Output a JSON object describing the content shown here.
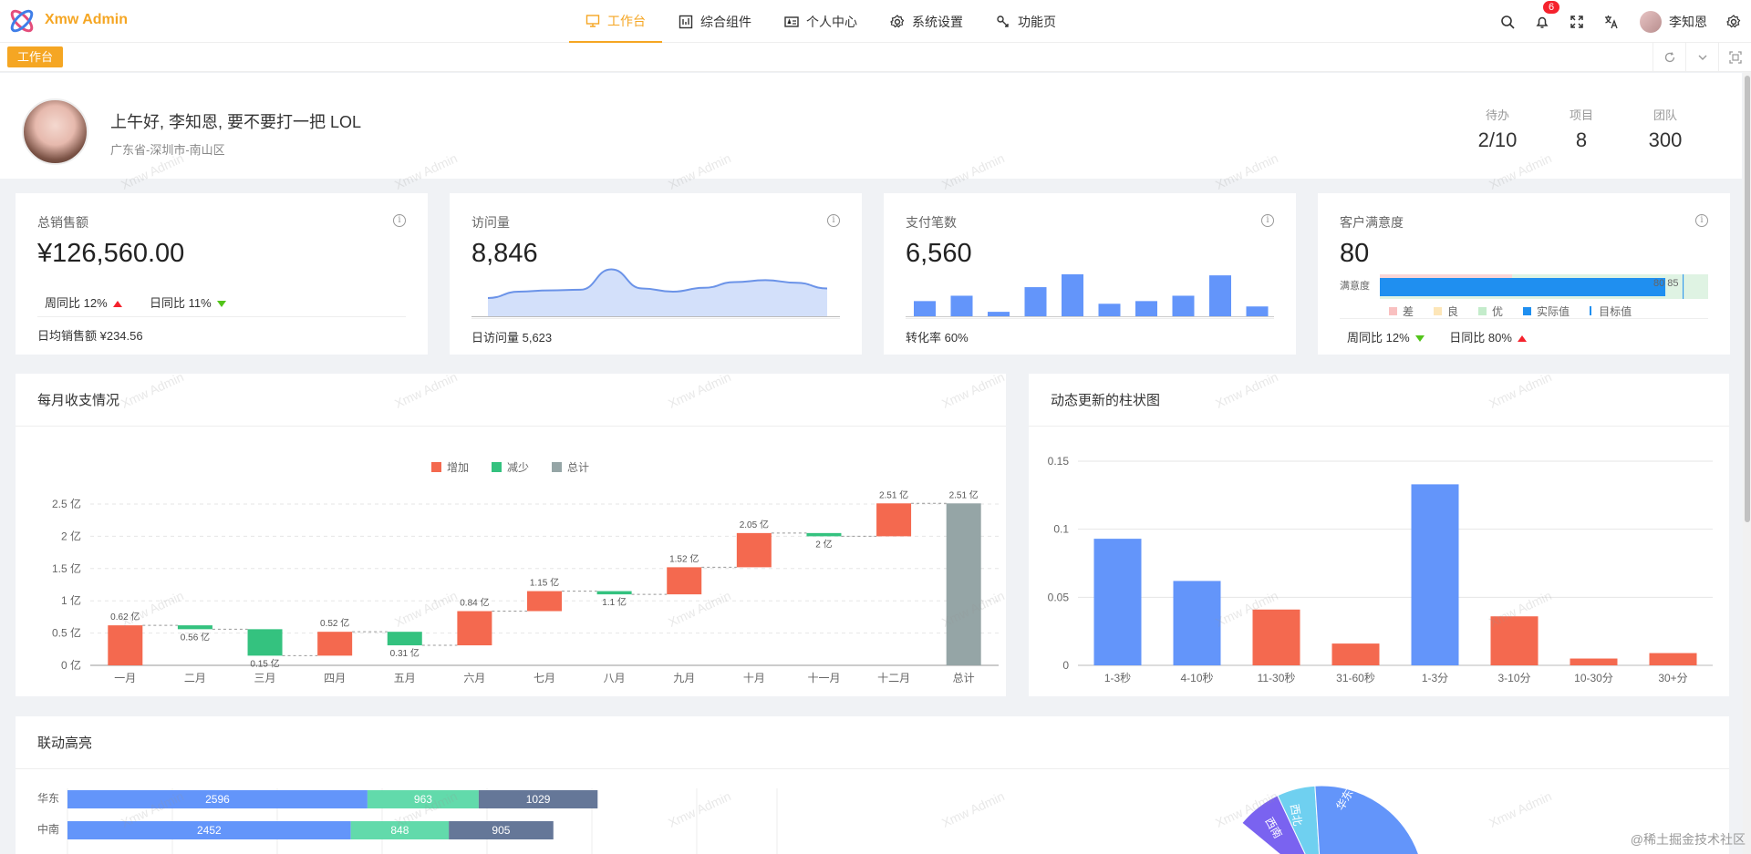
{
  "app": {
    "name": "Xmw Admin",
    "brand_color": "#f5a623"
  },
  "nav": [
    {
      "label": "工作台",
      "icon": "monitor-icon",
      "active": true
    },
    {
      "label": "综合组件",
      "icon": "component-icon",
      "active": false
    },
    {
      "label": "个人中心",
      "icon": "id-card-icon",
      "active": false
    },
    {
      "label": "系统设置",
      "icon": "gear-icon",
      "active": false
    },
    {
      "label": "功能页",
      "icon": "function-icon",
      "active": false
    }
  ],
  "header": {
    "notification_count": "6",
    "username": "李知恩"
  },
  "tabs": [
    {
      "label": "工作台"
    }
  ],
  "welcome": {
    "greeting": "上午好, 李知恩, 要不要打一把 LOL",
    "location": "广东省-深圳市-南山区",
    "stats": [
      {
        "label": "待办",
        "value": "2/10"
      },
      {
        "label": "项目",
        "value": "8"
      },
      {
        "label": "团队",
        "value": "300"
      }
    ]
  },
  "cards": {
    "sales": {
      "title": "总销售额",
      "value": "¥126,560.00",
      "week": "周同比 12%",
      "day": "日同比 11%",
      "footer": "日均销售额 ¥234.56"
    },
    "visits": {
      "title": "访问量",
      "value": "8,846",
      "footer": "日访问量 5,623",
      "trend": [
        3,
        4,
        4.2,
        4.3,
        7.5,
        4.5,
        4,
        4.6,
        5.5,
        5.8,
        5.4,
        4.5
      ]
    },
    "payments": {
      "title": "支付笔数",
      "value": "6,560",
      "footer": "转化率 60%",
      "bars": [
        3,
        4,
        1,
        5.6,
        8,
        2.5,
        3,
        4,
        7.8,
        2
      ]
    },
    "satisfaction": {
      "title": "客户满意度",
      "value": "80",
      "bar_label": "满意度",
      "actual": 80,
      "target": 85,
      "bar_value_text": "80 85",
      "legend": [
        "差",
        "良",
        "优",
        "实际值",
        "目标值"
      ],
      "week": "周同比 12%",
      "day": "日同比 80%"
    }
  },
  "waterfall": {
    "title": "每月收支情况",
    "legend": [
      "增加",
      "减少",
      "总计"
    ],
    "colors": {
      "up": "#f4694f",
      "down": "#34c27f",
      "total": "#95a5a6"
    },
    "chart_data": {
      "type": "bar",
      "categories": [
        "一月",
        "二月",
        "三月",
        "四月",
        "五月",
        "六月",
        "七月",
        "八月",
        "九月",
        "十月",
        "十一月",
        "十二月",
        "总计"
      ],
      "series": [
        {
          "name": "增加",
          "values": [
            0.62,
            0,
            0,
            0.52,
            0,
            0.84,
            1.15,
            0,
            1.52,
            2.05,
            0,
            2.51,
            0
          ]
        },
        {
          "name": "减少",
          "values": [
            0,
            0.56,
            0.15,
            0,
            0.31,
            0,
            0,
            1.1,
            0,
            0,
            2,
            0,
            0
          ]
        },
        {
          "name": "总计",
          "values": [
            0,
            0,
            0,
            0,
            0,
            0,
            0,
            0,
            0,
            0,
            0,
            0,
            2.51
          ]
        }
      ],
      "bar_ranges": [
        [
          0,
          0.62
        ],
        [
          0.56,
          0.62
        ],
        [
          0.15,
          0.56
        ],
        [
          0.15,
          0.52
        ],
        [
          0.31,
          0.52
        ],
        [
          0.31,
          0.84
        ],
        [
          0.84,
          1.15
        ],
        [
          1.1,
          1.15
        ],
        [
          1.1,
          1.52
        ],
        [
          1.52,
          2.05
        ],
        [
          2,
          2.05
        ],
        [
          2,
          2.51
        ],
        [
          0,
          2.51
        ]
      ],
      "kinds": [
        "up",
        "down",
        "down",
        "up",
        "down",
        "up",
        "up",
        "down",
        "up",
        "up",
        "down",
        "up",
        "total"
      ],
      "labels": [
        "0.62 亿",
        "0.56 亿",
        "0.15 亿",
        "0.52 亿",
        "0.31 亿",
        "0.84 亿",
        "1.15 亿",
        "1.1 亿",
        "1.52 亿",
        "2.05 亿",
        "2 亿",
        "2.51 亿",
        "2.51 亿"
      ],
      "yticks": [
        "0 亿",
        "0.5 亿",
        "1 亿",
        "1.5 亿",
        "2 亿",
        "2.5 亿"
      ],
      "ylim": [
        0,
        2.5
      ]
    }
  },
  "dynamic": {
    "title": "动态更新的柱状图",
    "chart_data": {
      "type": "bar",
      "categories": [
        "1-3秒",
        "4-10秒",
        "11-30秒",
        "31-60秒",
        "1-3分",
        "3-10分",
        "10-30分",
        "30+分"
      ],
      "values": [
        0.093,
        0.062,
        0.041,
        0.016,
        0.133,
        0.036,
        0.005,
        0.009
      ],
      "colors": [
        "#6395fa",
        "#6395fa",
        "#f4694f",
        "#f4694f",
        "#6395fa",
        "#f4694f",
        "#f4694f",
        "#f4694f"
      ],
      "yticks": [
        "0",
        "0.05",
        "0.1",
        "0.15"
      ],
      "ylim": [
        0,
        0.15
      ]
    }
  },
  "linked": {
    "title": "联动高亮",
    "chart_data": {
      "type": "bar",
      "categories": [
        "华东",
        "中南"
      ],
      "series": [
        {
          "values": [
            2596,
            2452
          ],
          "color": "#6395fa"
        },
        {
          "values": [
            963,
            848
          ],
          "color": "#62daab"
        },
        {
          "values": [
            1029,
            905
          ],
          "color": "#657798"
        }
      ]
    },
    "pie_labels": [
      "西南",
      "西北",
      "华东"
    ]
  },
  "watermark_text": "Xmw Admin",
  "corner_credit": "@稀土掘金技术社区"
}
